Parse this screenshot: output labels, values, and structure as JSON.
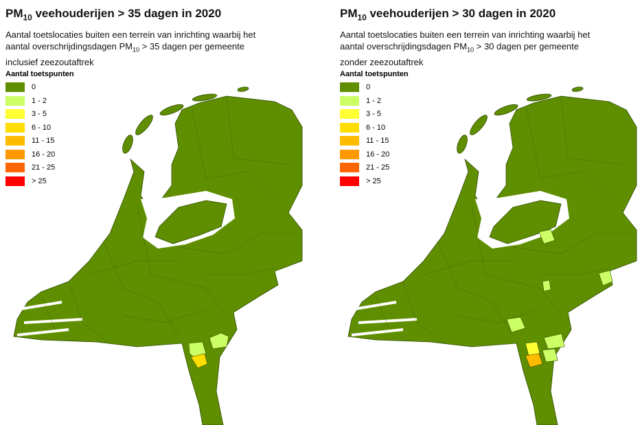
{
  "panels": [
    {
      "title": [
        "PM",
        "10",
        " veehouderijen > 35 dagen in 2020"
      ],
      "subtitle_lines": [
        [
          "Aantal toetslocaties buiten een terrein van inrichting waarbij het"
        ],
        [
          "aantal overschrijdingsdagen PM",
          "10",
          " > 35 dagen per gemeente"
        ],
        [
          "inclusief zeezoutaftrek"
        ]
      ],
      "legend": {
        "title": "Aantal toetspunten",
        "items": [
          {
            "label": "0",
            "color": "#5f8f00"
          },
          {
            "label": "1 - 2",
            "color": "#ccff66"
          },
          {
            "label": "3 - 5",
            "color": "#ffff33"
          },
          {
            "label": "6 - 10",
            "color": "#ffdd00"
          },
          {
            "label": "11 - 15",
            "color": "#ffbb00"
          },
          {
            "label": "16 - 20",
            "color": "#ff9900"
          },
          {
            "label": "21 - 25",
            "color": "#ff6600"
          },
          {
            "label": "> 25",
            "color": "#ff0000"
          }
        ]
      }
    },
    {
      "title": [
        "PM",
        "10",
        " veehouderijen > 30 dagen in 2020"
      ],
      "subtitle_lines": [
        [
          "Aantal toetslocaties buiten een terrein van inrichting waarbij het"
        ],
        [
          "aantal overschrijdingsdagen PM",
          "10",
          " > 30 dagen per gemeente"
        ],
        [
          "zonder zeezoutaftrek"
        ]
      ],
      "legend": {
        "title": "Aantal toetspunten",
        "items": [
          {
            "label": "0",
            "color": "#5f8f00"
          },
          {
            "label": "1 - 2",
            "color": "#ccff66"
          },
          {
            "label": "3 - 5",
            "color": "#ffff33"
          },
          {
            "label": "6 - 10",
            "color": "#ffdd00"
          },
          {
            "label": "11 - 15",
            "color": "#ffbb00"
          },
          {
            "label": "16 - 20",
            "color": "#ff9900"
          },
          {
            "label": "21 - 25",
            "color": "#ff6600"
          },
          {
            "label": "> 25",
            "color": "#ff0000"
          }
        ]
      }
    }
  ]
}
